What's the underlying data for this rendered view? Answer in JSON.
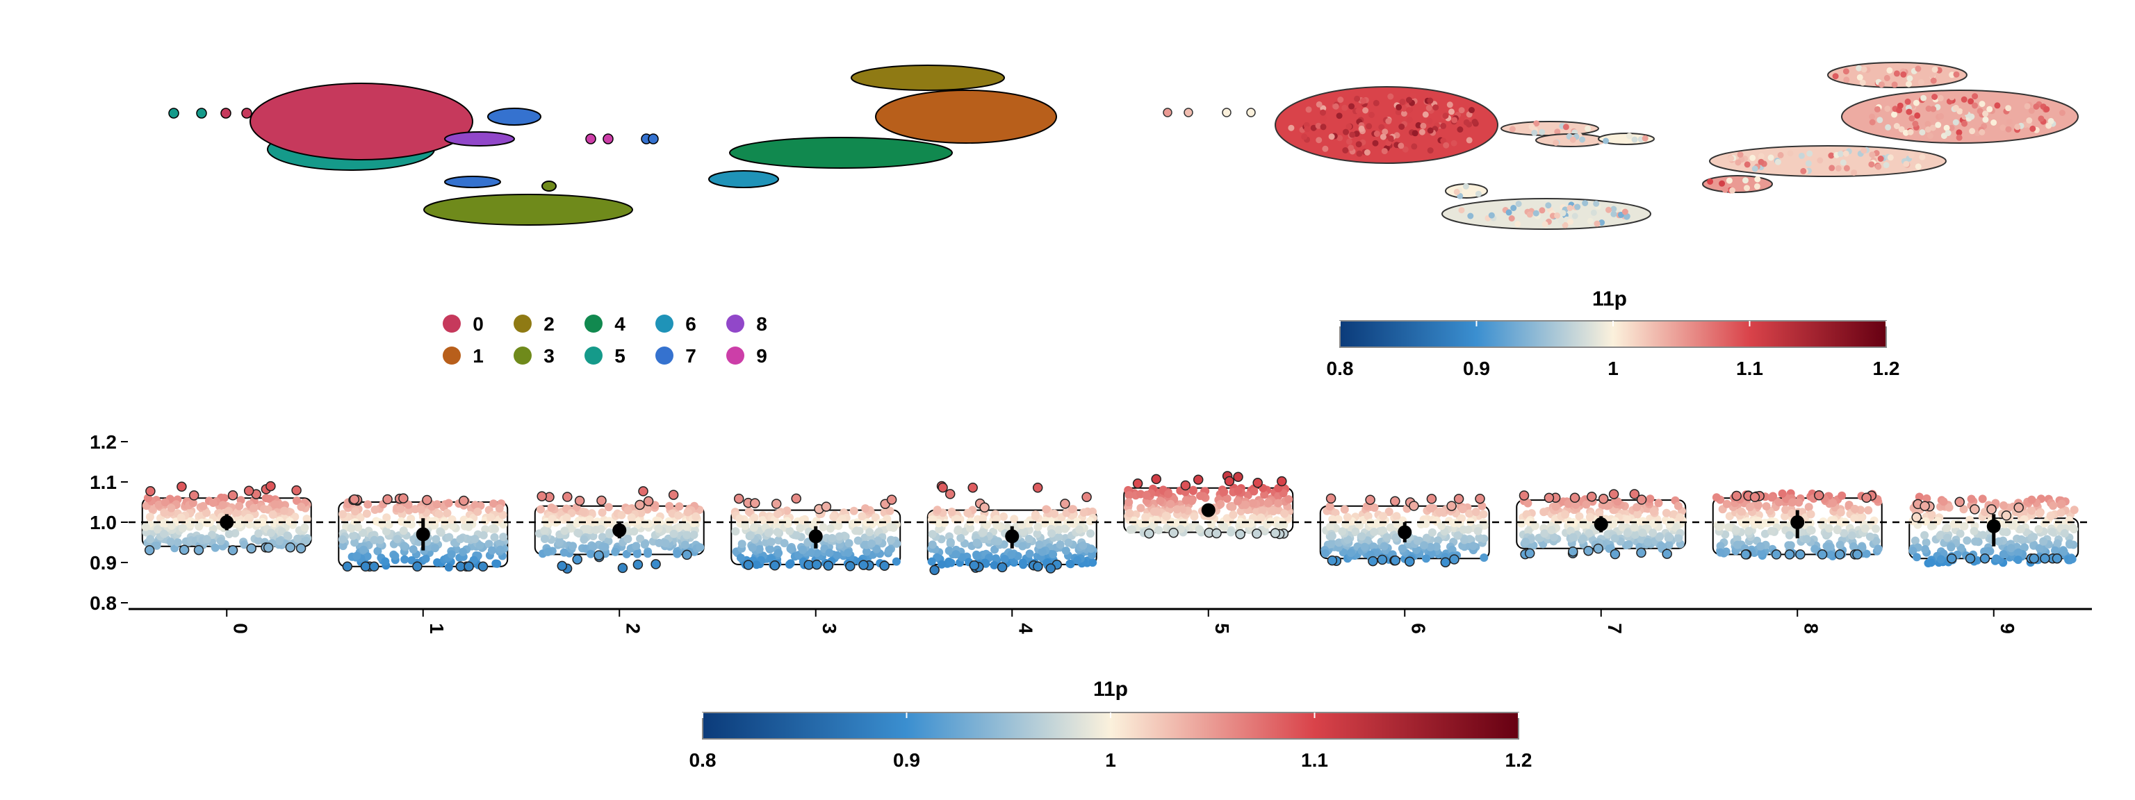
{
  "umap_clusters": {
    "legend_title": "",
    "clusters": [
      {
        "label": "0",
        "color": "#c6395c"
      },
      {
        "label": "1",
        "color": "#b85f1b"
      },
      {
        "label": "2",
        "color": "#8f7a14"
      },
      {
        "label": "3",
        "color": "#6f8a1b"
      },
      {
        "label": "4",
        "color": "#11894f"
      },
      {
        "label": "5",
        "color": "#159a8a"
      },
      {
        "label": "6",
        "color": "#1f93b8"
      },
      {
        "label": "7",
        "color": "#3572cf"
      },
      {
        "label": "8",
        "color": "#9147c9"
      },
      {
        "label": "9",
        "color": "#cc3ea8"
      }
    ]
  },
  "umap_feature": {
    "title": "11p",
    "ticks": [
      "0.8",
      "0.9",
      "1",
      "1.1",
      "1.2"
    ]
  },
  "colorbar_bottom": {
    "title": "11p",
    "ticks": [
      "0.8",
      "0.9",
      "1",
      "1.1",
      "1.2"
    ]
  },
  "chart_data": [
    {
      "type": "scatter",
      "title": "",
      "description_note": "",
      "xlabel": "",
      "ylabel": "",
      "series_by_cluster": [
        "0",
        "1",
        "2",
        "3",
        "4",
        "5",
        "6",
        "7",
        "8",
        "9"
      ]
    },
    {
      "type": "scatter",
      "title": "11p",
      "xlabel": "",
      "ylabel": "",
      "color_range": [
        0.8,
        1.2
      ]
    },
    {
      "type": "scatter",
      "title": "",
      "xlabel": "",
      "ylabel": "",
      "ylim": [
        0.8,
        1.2
      ],
      "reference_line": 1.0,
      "y_ticks": [
        "0.8",
        "0.9",
        "1.0",
        "1.1",
        "1.2"
      ],
      "categories": [
        "0",
        "1",
        "2",
        "3",
        "4",
        "5",
        "6",
        "7",
        "8",
        "9"
      ],
      "median": [
        1.0,
        0.97,
        0.98,
        0.965,
        0.965,
        1.03,
        0.975,
        0.995,
        1.0,
        0.99
      ],
      "lower": [
        0.98,
        0.93,
        0.96,
        0.935,
        0.935,
        1.015,
        0.95,
        0.975,
        0.96,
        0.94
      ],
      "upper": [
        1.02,
        1.01,
        1.0,
        0.99,
        0.99,
        1.045,
        1.0,
        1.015,
        1.03,
        1.02
      ],
      "range_min": [
        0.93,
        0.89,
        0.88,
        0.89,
        0.88,
        0.97,
        0.9,
        0.92,
        0.92,
        0.91
      ],
      "range_max": [
        1.09,
        1.06,
        1.08,
        1.06,
        1.09,
        1.12,
        1.06,
        1.07,
        1.06,
        1.01
      ],
      "color_range": [
        0.8,
        1.2
      ]
    }
  ]
}
